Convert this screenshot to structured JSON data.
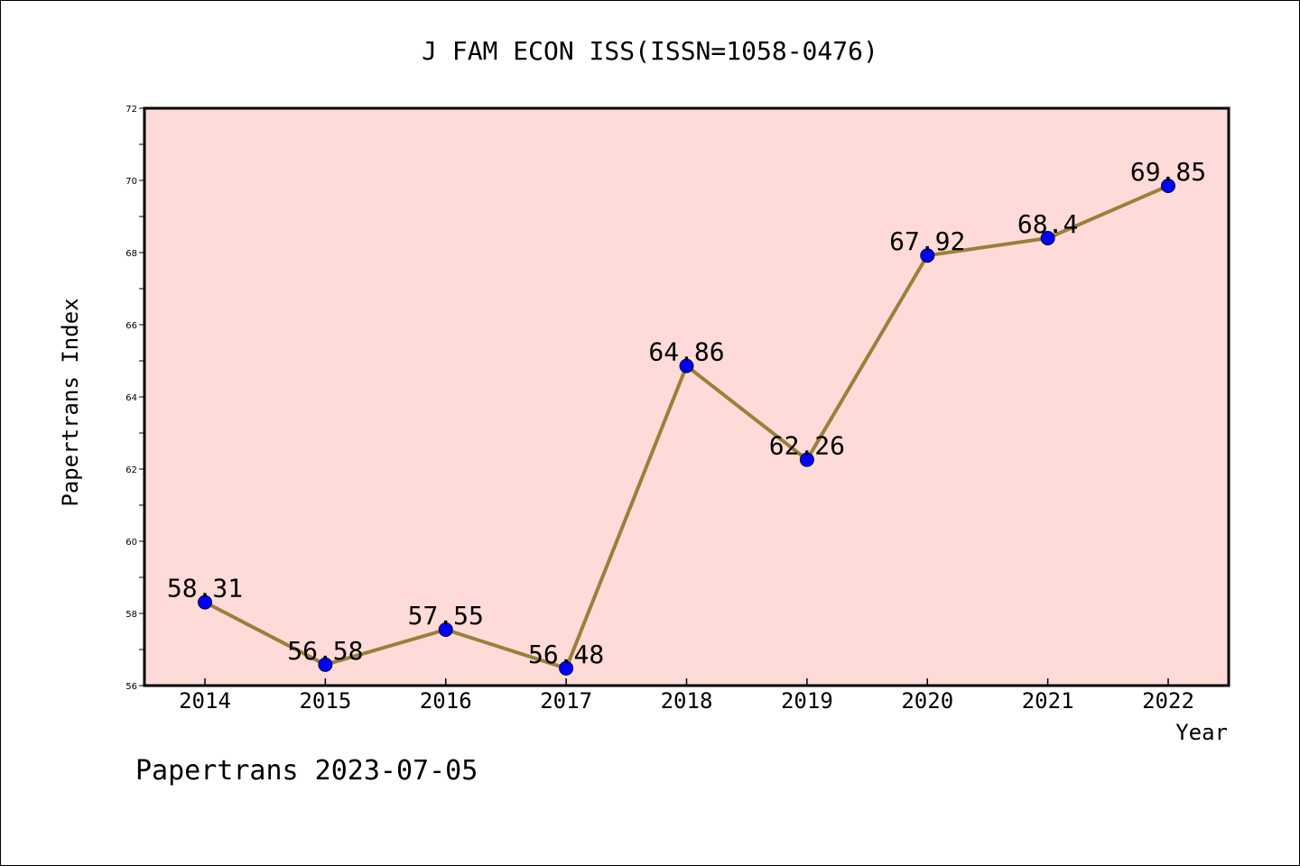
{
  "chart_data": {
    "type": "line",
    "title": "J FAM ECON ISS(ISSN=1058-0476)",
    "xlabel": "Year",
    "ylabel": "Papertrans Index",
    "categories": [
      "2014",
      "2015",
      "2016",
      "2017",
      "2018",
      "2019",
      "2020",
      "2021",
      "2022"
    ],
    "values": [
      58.31,
      56.58,
      57.55,
      56.48,
      64.86,
      62.26,
      67.92,
      68.4,
      69.85
    ],
    "data_labels": [
      "58.31",
      "56.58",
      "57.55",
      "56.48",
      "64.86",
      "62.26",
      "67.92",
      "68.4",
      "69.85"
    ],
    "ylim": [
      56,
      72
    ],
    "yticks": [
      "56",
      "58",
      "60",
      "62",
      "64",
      "66",
      "68",
      "70",
      "72"
    ],
    "grid": false,
    "legend": "none",
    "footer": "Papertrans 2023-07-05"
  },
  "colors": {
    "plot_background": "#fedbd8",
    "line": "#9b7f3a",
    "marker": "#0000ff",
    "axis": "#000000"
  }
}
